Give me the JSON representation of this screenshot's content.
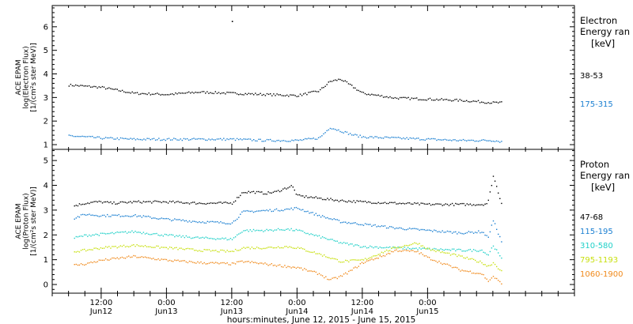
{
  "chart_data": [
    {
      "type": "scatter",
      "panel": "electron",
      "ylabel_lines": [
        "ACE EPAM",
        "log(Electron Flux)",
        "[1/(cm²s ster MeV)]"
      ],
      "ylim": [
        0.8,
        6.9
      ],
      "yticks": [
        "1",
        "2",
        "3",
        "4",
        "5",
        "6"
      ],
      "legend_title_lines": [
        "Electron",
        "Energy ran",
        "[keV]"
      ],
      "legend_placement": "right",
      "grid": false,
      "series": [
        {
          "name": "38-53",
          "color": "#000000",
          "x_hours": [
            6,
            12,
            18,
            24,
            30,
            36,
            42,
            48,
            52,
            54,
            56,
            58,
            60,
            66,
            72,
            78,
            84,
            85.5
          ],
          "values": [
            3.55,
            3.45,
            3.2,
            3.15,
            3.25,
            3.2,
            3.15,
            3.1,
            3.3,
            3.7,
            3.8,
            3.5,
            3.2,
            3.0,
            2.95,
            2.9,
            2.8,
            2.8
          ]
        },
        {
          "name": "175-315",
          "color": "#1a7fd1",
          "x_hours": [
            6,
            12,
            18,
            24,
            30,
            36,
            42,
            48,
            52,
            54,
            56,
            58,
            60,
            66,
            72,
            78,
            84,
            85.5
          ],
          "values": [
            1.4,
            1.3,
            1.25,
            1.25,
            1.25,
            1.25,
            1.2,
            1.2,
            1.3,
            1.75,
            1.6,
            1.45,
            1.35,
            1.3,
            1.25,
            1.2,
            1.2,
            1.15
          ]
        }
      ],
      "annotations": [
        {
          "x_hours": 36,
          "y": 6.25,
          "text": ""
        }
      ]
    },
    {
      "type": "scatter",
      "panel": "proton",
      "ylabel_lines": [
        "ACE EPAM",
        "log(Proton Flux)",
        "[1/(cm²s ster MeV)]"
      ],
      "ylim": [
        -0.35,
        5.45
      ],
      "yticks": [
        "0",
        "1",
        "2",
        "3",
        "4",
        "5"
      ],
      "legend_title_lines": [
        "Proton",
        "Energy ran",
        "[keV]"
      ],
      "legend_placement": "right",
      "grid": false,
      "series": [
        {
          "name": "47-68",
          "color": "#000000",
          "x_hours": [
            7,
            9,
            11,
            12,
            14,
            18,
            24,
            30,
            36,
            38,
            40,
            42,
            44,
            47,
            48,
            52,
            56,
            60,
            66,
            72,
            78,
            82,
            83,
            84,
            85.5
          ],
          "values": [
            3.2,
            3.3,
            3.35,
            3.35,
            3.3,
            3.35,
            3.35,
            3.3,
            3.3,
            3.75,
            3.75,
            3.7,
            3.75,
            4.0,
            3.6,
            3.5,
            3.4,
            3.35,
            3.3,
            3.25,
            3.25,
            3.25,
            3.3,
            4.4,
            3.3
          ]
        },
        {
          "name": "115-195",
          "color": "#1a7fd1",
          "x_hours": [
            7,
            9,
            12,
            18,
            24,
            30,
            36,
            38,
            42,
            46,
            48,
            52,
            56,
            60,
            66,
            72,
            78,
            82,
            83,
            84,
            85.5
          ],
          "values": [
            2.7,
            2.85,
            2.8,
            2.8,
            2.65,
            2.55,
            2.5,
            2.95,
            3.0,
            3.05,
            3.1,
            2.8,
            2.55,
            2.45,
            2.3,
            2.2,
            2.1,
            2.15,
            1.9,
            2.6,
            1.75
          ]
        },
        {
          "name": "310-580",
          "color": "#20d0c8",
          "x_hours": [
            7,
            9,
            12,
            18,
            24,
            30,
            36,
            38,
            42,
            46,
            48,
            52,
            56,
            60,
            66,
            72,
            78,
            82,
            83,
            84,
            85.5
          ],
          "values": [
            1.9,
            2.0,
            2.05,
            2.15,
            2.0,
            1.9,
            1.85,
            2.2,
            2.2,
            2.25,
            2.2,
            1.95,
            1.7,
            1.55,
            1.5,
            1.45,
            1.4,
            1.4,
            1.2,
            1.6,
            1.05
          ]
        },
        {
          "name": "795-1193",
          "color": "#c8e010",
          "x_hours": [
            7,
            9,
            12,
            18,
            24,
            30,
            36,
            38,
            42,
            46,
            48,
            52,
            54,
            56,
            60,
            64,
            66,
            70,
            72,
            78,
            82,
            83,
            84,
            85.5
          ],
          "values": [
            1.35,
            1.4,
            1.5,
            1.6,
            1.5,
            1.4,
            1.35,
            1.5,
            1.5,
            1.55,
            1.5,
            1.25,
            1.1,
            0.95,
            1.0,
            1.35,
            1.5,
            1.7,
            1.45,
            1.15,
            0.9,
            0.75,
            0.9,
            0.55
          ]
        },
        {
          "name": "1060-1900",
          "color": "#f08a1c",
          "x_hours": [
            7,
            9,
            12,
            18,
            24,
            30,
            36,
            38,
            42,
            46,
            48,
            52,
            54,
            56,
            58,
            60,
            64,
            66,
            70,
            72,
            78,
            82,
            83,
            84,
            85.5
          ],
          "values": [
            0.8,
            0.85,
            1.0,
            1.15,
            1.0,
            0.9,
            0.85,
            0.95,
            0.85,
            0.75,
            0.7,
            0.45,
            0.2,
            0.35,
            0.6,
            0.9,
            1.2,
            1.4,
            1.35,
            1.1,
            0.6,
            0.45,
            0.15,
            0.35,
            0.05
          ]
        }
      ],
      "annotations": []
    }
  ],
  "x_axis": {
    "range_hours": [
      3,
      99
    ],
    "major_ticks": [
      {
        "hour": 12,
        "label": "12:00",
        "sublabel": "Jun12"
      },
      {
        "hour": 24,
        "label": "0:00",
        "sublabel": "Jun13"
      },
      {
        "hour": 36,
        "label": "12:00",
        "sublabel": "Jun13"
      },
      {
        "hour": 48,
        "label": "0:00",
        "sublabel": "Jun14"
      },
      {
        "hour": 60,
        "label": "12:00",
        "sublabel": "Jun14"
      },
      {
        "hour": 72,
        "label": "0:00",
        "sublabel": "Jun15"
      }
    ],
    "minor_tick_step_hours": 3,
    "xlabel": "hours:minutes, June 12, 2015 - June 15, 2015"
  }
}
